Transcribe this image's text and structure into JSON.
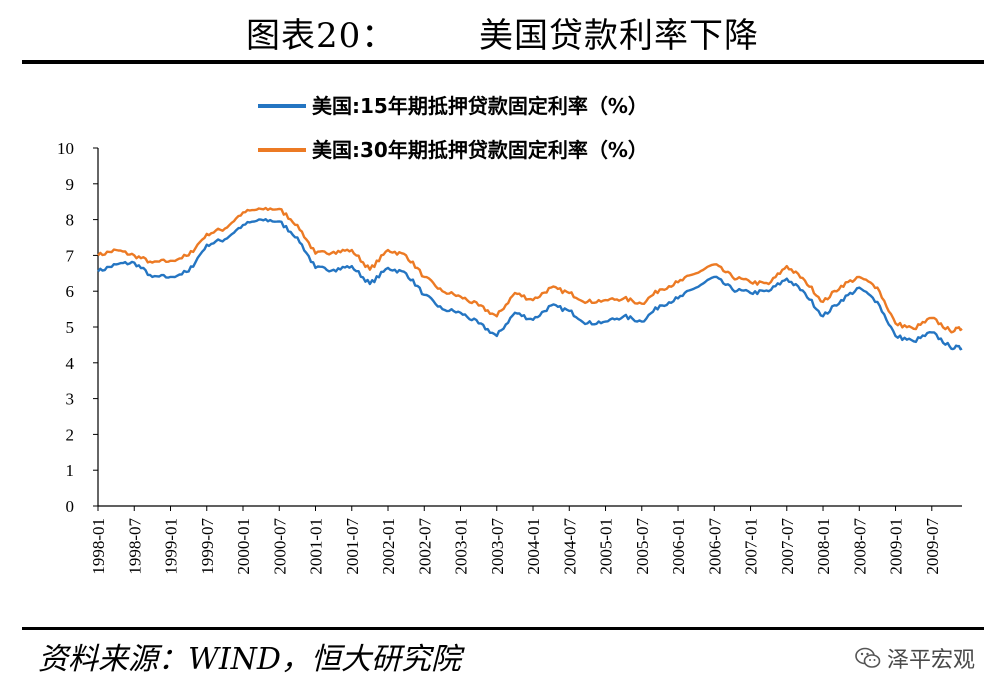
{
  "title": "图表20：       美国贷款利率下降",
  "source": "资料来源：WIND，恒大研究院",
  "watermark": "泽平宏观",
  "colors": {
    "series_15": "#2475c2",
    "series_30": "#ec7a24"
  },
  "chart_data": {
    "type": "line",
    "ylim": [
      0,
      10
    ],
    "yticks": [
      0,
      1,
      2,
      3,
      4,
      5,
      6,
      7,
      8,
      9,
      10
    ],
    "xticks": [
      "1998-01",
      "1998-07",
      "1999-01",
      "1999-07",
      "2000-01",
      "2000-07",
      "2001-01",
      "2001-07",
      "2002-01",
      "2002-07",
      "2003-01",
      "2003-07",
      "2004-01",
      "2004-07",
      "2005-01",
      "2005-07",
      "2006-01",
      "2006-07",
      "2007-01",
      "2007-07",
      "2008-01",
      "2008-07",
      "2009-01",
      "2009-07"
    ],
    "legend_position": "top-center",
    "grid": false,
    "x": [
      "1998-01",
      "1998-04",
      "1998-07",
      "1998-10",
      "1999-01",
      "1999-04",
      "1999-07",
      "1999-10",
      "2000-01",
      "2000-04",
      "2000-07",
      "2000-10",
      "2001-01",
      "2001-04",
      "2001-07",
      "2001-10",
      "2002-01",
      "2002-04",
      "2002-07",
      "2002-10",
      "2003-01",
      "2003-04",
      "2003-07",
      "2003-10",
      "2004-01",
      "2004-04",
      "2004-07",
      "2004-10",
      "2005-01",
      "2005-04",
      "2005-07",
      "2005-10",
      "2006-01",
      "2006-04",
      "2006-07",
      "2006-10",
      "2007-01",
      "2007-04",
      "2007-07",
      "2007-10",
      "2008-01",
      "2008-04",
      "2008-07",
      "2008-10",
      "2009-01",
      "2009-04",
      "2009-07",
      "2009-10",
      "2009-12"
    ],
    "series": [
      {
        "name": "美国:15年期抵押贷款固定利率（%）",
        "values": [
          6.55,
          6.75,
          6.8,
          6.4,
          6.4,
          6.55,
          7.3,
          7.45,
          7.85,
          8.0,
          7.95,
          7.5,
          6.65,
          6.6,
          6.7,
          6.2,
          6.65,
          6.5,
          5.9,
          5.5,
          5.4,
          5.1,
          4.75,
          5.4,
          5.2,
          5.6,
          5.45,
          5.1,
          5.15,
          5.3,
          5.15,
          5.6,
          5.8,
          6.1,
          6.4,
          6.05,
          5.95,
          6.0,
          6.35,
          5.95,
          5.3,
          5.75,
          6.1,
          5.7,
          4.75,
          4.6,
          4.85,
          4.45,
          4.4
        ]
      },
      {
        "name": "美国:30年期抵押贷款固定利率（%）",
        "values": [
          7.0,
          7.15,
          7.0,
          6.8,
          6.85,
          7.0,
          7.6,
          7.75,
          8.2,
          8.3,
          8.3,
          7.85,
          7.05,
          7.1,
          7.15,
          6.6,
          7.15,
          7.0,
          6.4,
          6.0,
          5.85,
          5.6,
          5.3,
          5.95,
          5.75,
          6.1,
          5.95,
          5.7,
          5.75,
          5.8,
          5.65,
          6.05,
          6.25,
          6.5,
          6.75,
          6.4,
          6.25,
          6.2,
          6.7,
          6.3,
          5.7,
          6.15,
          6.4,
          6.1,
          5.1,
          4.95,
          5.25,
          4.9,
          4.95
        ]
      }
    ]
  }
}
